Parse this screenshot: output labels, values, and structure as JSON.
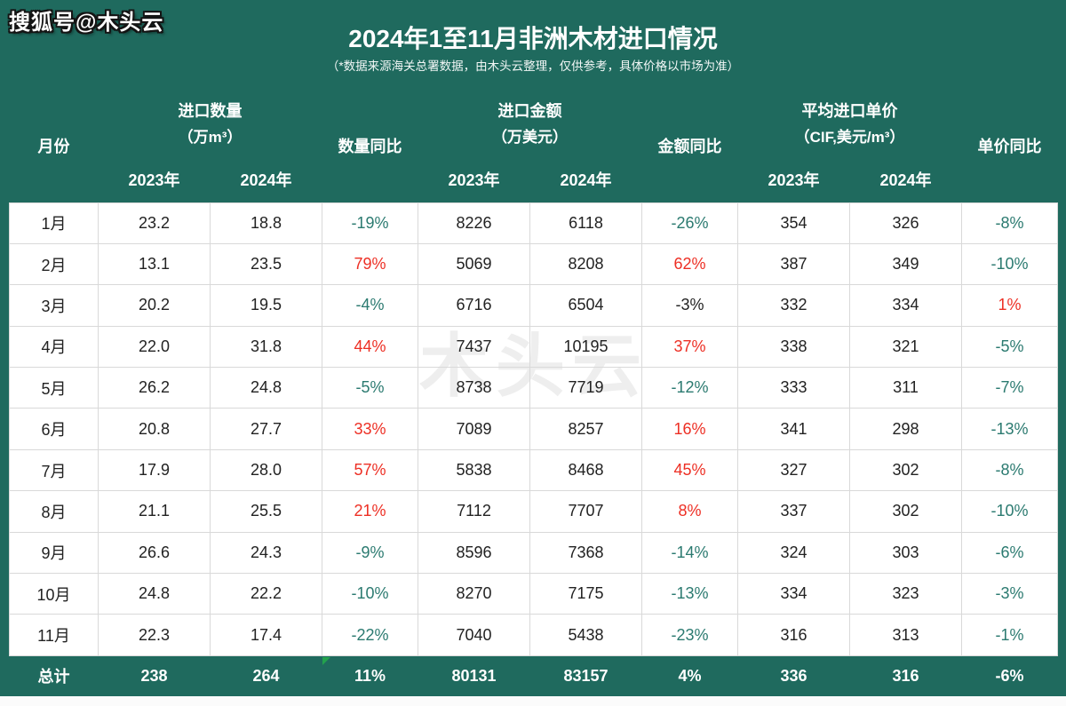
{
  "page": {
    "watermark_top": "搜狐号@木头云",
    "watermark_center": "木头云",
    "title": "2024年1至11月非洲木材进口情况",
    "subtitle": "（*数据来源海关总署数据，由木头云整理，仅供参考，具体价格以市场为准）"
  },
  "colors": {
    "background_green": "#1f6a5e",
    "yoy_negative_teal": "#2b7a70",
    "yoy_positive_red": "#ed2f24",
    "data_text_dark": "#222222",
    "grid_line": "#d9d9d9",
    "comment_triangle_green": "#23a24d"
  },
  "table": {
    "group_headers": {
      "month": "月份",
      "qty_label": "进口数量",
      "qty_unit": "（万m³）",
      "qty_yoy": "数量同比",
      "amount_label": "进口金额",
      "amount_unit": "（万美元）",
      "amount_yoy": "金额同比",
      "price_label": "平均进口单价",
      "price_unit": "（CIF,美元/m³）",
      "price_yoy": "单价同比"
    },
    "year_headers": [
      "2023年",
      "2024年",
      "2023年",
      "2024年",
      "2023年",
      "2024年"
    ],
    "rows": [
      {
        "month": "1月",
        "cells": [
          "23.2",
          "18.8",
          "-19%",
          "8226",
          "6118",
          "-26%",
          "354",
          "326",
          "-8%"
        ],
        "tones": [
          null,
          null,
          "neg",
          null,
          null,
          "neg",
          null,
          null,
          "neg"
        ]
      },
      {
        "month": "2月",
        "cells": [
          "13.1",
          "23.5",
          "79%",
          "5069",
          "8208",
          "62%",
          "387",
          "349",
          "-10%"
        ],
        "tones": [
          null,
          null,
          "pos",
          null,
          null,
          "pos",
          null,
          null,
          "neg"
        ]
      },
      {
        "month": "3月",
        "cells": [
          "20.2",
          "19.5",
          "-4%",
          "6716",
          "6504",
          "-3%",
          "332",
          "334",
          "1%"
        ],
        "tones": [
          null,
          null,
          "neg",
          null,
          null,
          "dark",
          null,
          null,
          "pos"
        ]
      },
      {
        "month": "4月",
        "cells": [
          "22.0",
          "31.8",
          "44%",
          "7437",
          "10195",
          "37%",
          "338",
          "321",
          "-5%"
        ],
        "tones": [
          null,
          null,
          "pos",
          null,
          null,
          "pos",
          null,
          null,
          "neg"
        ]
      },
      {
        "month": "5月",
        "cells": [
          "26.2",
          "24.8",
          "-5%",
          "8738",
          "7719",
          "-12%",
          "333",
          "311",
          "-7%"
        ],
        "tones": [
          null,
          null,
          "neg",
          null,
          null,
          "neg",
          null,
          null,
          "neg"
        ]
      },
      {
        "month": "6月",
        "cells": [
          "20.8",
          "27.7",
          "33%",
          "7089",
          "8257",
          "16%",
          "341",
          "298",
          "-13%"
        ],
        "tones": [
          null,
          null,
          "pos",
          null,
          null,
          "pos",
          null,
          null,
          "neg"
        ]
      },
      {
        "month": "7月",
        "cells": [
          "17.9",
          "28.0",
          "57%",
          "5838",
          "8468",
          "45%",
          "327",
          "302",
          "-8%"
        ],
        "tones": [
          null,
          null,
          "pos",
          null,
          null,
          "pos",
          null,
          null,
          "neg"
        ]
      },
      {
        "month": "8月",
        "cells": [
          "21.1",
          "25.5",
          "21%",
          "7112",
          "7707",
          "8%",
          "337",
          "302",
          "-10%"
        ],
        "tones": [
          null,
          null,
          "pos",
          null,
          null,
          "pos",
          null,
          null,
          "neg"
        ]
      },
      {
        "month": "9月",
        "cells": [
          "26.6",
          "24.3",
          "-9%",
          "8596",
          "7368",
          "-14%",
          "324",
          "303",
          "-6%"
        ],
        "tones": [
          null,
          null,
          "neg",
          null,
          null,
          "neg",
          null,
          null,
          "neg"
        ]
      },
      {
        "month": "10月",
        "cells": [
          "24.8",
          "22.2",
          "-10%",
          "8270",
          "7175",
          "-13%",
          "334",
          "323",
          "-3%"
        ],
        "tones": [
          null,
          null,
          "neg",
          null,
          null,
          "neg",
          null,
          null,
          "neg"
        ]
      },
      {
        "month": "11月",
        "cells": [
          "22.3",
          "17.4",
          "-22%",
          "7040",
          "5438",
          "-23%",
          "316",
          "313",
          "-1%"
        ],
        "tones": [
          null,
          null,
          "neg",
          null,
          null,
          "neg",
          null,
          null,
          "neg"
        ]
      }
    ],
    "total": {
      "label": "总计",
      "cells": [
        "238",
        "264",
        "11%",
        "80131",
        "83157",
        "4%",
        "336",
        "316",
        "-6%"
      ]
    }
  },
  "chart_data": {
    "type": "table",
    "title": "2024年1至11月非洲木材进口情况",
    "subtitle": "（*数据来源海关总署数据，由木头云整理，仅供参考，具体价格以市场为准）",
    "columns": [
      "月份",
      "进口数量(万m³) 2023年",
      "进口数量(万m³) 2024年",
      "数量同比",
      "进口金额(万美元) 2023年",
      "进口金额(万美元) 2024年",
      "金额同比",
      "平均进口单价(CIF,美元/m³) 2023年",
      "平均进口单价(CIF,美元/m³) 2024年",
      "单价同比"
    ],
    "rows": [
      [
        "1月",
        23.2,
        18.8,
        "-19%",
        8226,
        6118,
        "-26%",
        354,
        326,
        "-8%"
      ],
      [
        "2月",
        13.1,
        23.5,
        "79%",
        5069,
        8208,
        "62%",
        387,
        349,
        "-10%"
      ],
      [
        "3月",
        20.2,
        19.5,
        "-4%",
        6716,
        6504,
        "-3%",
        332,
        334,
        "1%"
      ],
      [
        "4月",
        22.0,
        31.8,
        "44%",
        7437,
        10195,
        "37%",
        338,
        321,
        "-5%"
      ],
      [
        "5月",
        26.2,
        24.8,
        "-5%",
        8738,
        7719,
        "-12%",
        333,
        311,
        "-7%"
      ],
      [
        "6月",
        20.8,
        27.7,
        "33%",
        7089,
        8257,
        "16%",
        341,
        298,
        "-13%"
      ],
      [
        "7月",
        17.9,
        28.0,
        "57%",
        5838,
        8468,
        "45%",
        327,
        302,
        "-8%"
      ],
      [
        "8月",
        21.1,
        25.5,
        "21%",
        7112,
        7707,
        "8%",
        337,
        302,
        "-10%"
      ],
      [
        "9月",
        26.6,
        24.3,
        "-9%",
        8596,
        7368,
        "-14%",
        324,
        303,
        "-6%"
      ],
      [
        "10月",
        24.8,
        22.2,
        "-10%",
        8270,
        7175,
        "-13%",
        334,
        323,
        "-3%"
      ],
      [
        "11月",
        22.3,
        17.4,
        "-22%",
        7040,
        5438,
        "-23%",
        316,
        313,
        "-1%"
      ]
    ],
    "total_row": [
      "总计",
      238,
      264,
      "11%",
      80131,
      83157,
      "4%",
      336,
      316,
      "-6%"
    ]
  }
}
